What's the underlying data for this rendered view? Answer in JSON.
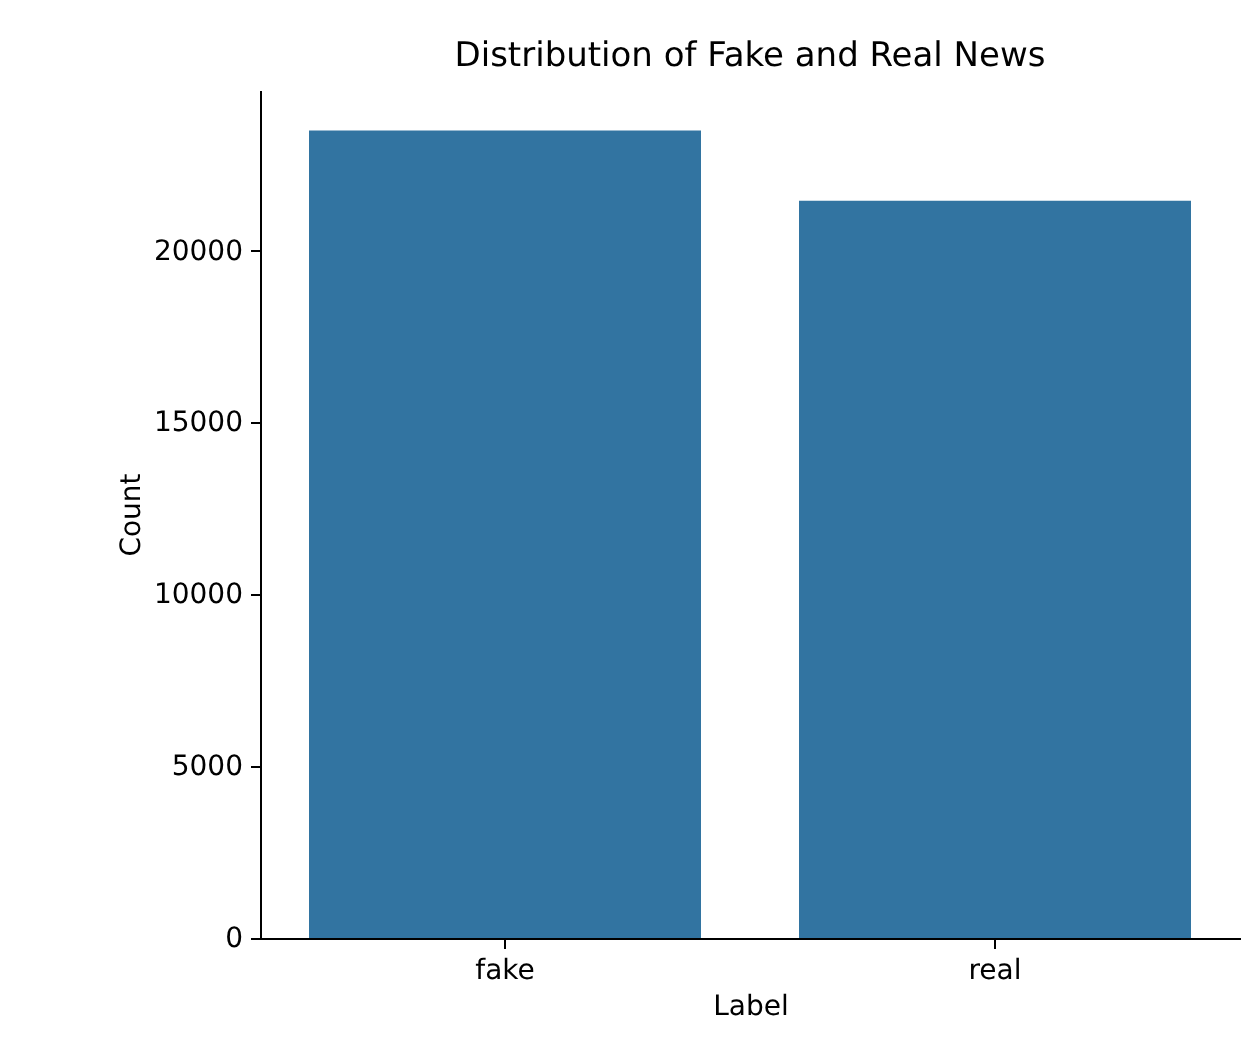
{
  "chart_data": {
    "type": "bar",
    "title": "Distribution of Fake and Real News",
    "xlabel": "Label",
    "ylabel": "Count",
    "categories": [
      "fake",
      "real"
    ],
    "values": [
      23500,
      21450
    ],
    "color": "#3274a1",
    "ylim": [
      0,
      24675
    ],
    "yticks": [
      0,
      5000,
      10000,
      15000,
      20000
    ],
    "grid": false
  }
}
